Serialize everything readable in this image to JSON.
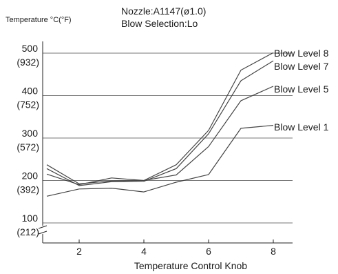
{
  "chart_data": {
    "type": "line",
    "y_axis_title": "Temperature °C(°F)",
    "header_lines": [
      "Nozzle:A1147(ø1.0)",
      "Blow Selection:Lo"
    ],
    "xlabel": "Temperature Control Knob",
    "xlim": [
      0,
      8.5
    ],
    "ylim": [
      50,
      550
    ],
    "x_ticks": [
      {
        "value": 2,
        "label": "2"
      },
      {
        "value": 4,
        "label": "4"
      },
      {
        "value": 6,
        "label": "6"
      },
      {
        "value": 8,
        "label": "8"
      }
    ],
    "y_ticks": [
      {
        "value": 100,
        "celsius": "100",
        "fahrenheit": "(212)"
      },
      {
        "value": 200,
        "celsius": "200",
        "fahrenheit": "(392)"
      },
      {
        "value": 300,
        "celsius": "300",
        "fahrenheit": "(572)"
      },
      {
        "value": 400,
        "celsius": "400",
        "fahrenheit": "(752)"
      },
      {
        "value": 500,
        "celsius": "500",
        "fahrenheit": "(932)"
      }
    ],
    "grid": "horizontal",
    "axis_break": "y-axis near 100",
    "line_color": "#444444",
    "series": [
      {
        "name": "Blow Level 8",
        "x": [
          1,
          2,
          3,
          4,
          5,
          6,
          7,
          8
        ],
        "y": [
          237,
          192,
          199,
          200,
          237,
          318,
          460,
          501
        ]
      },
      {
        "name": "Blow Level 7",
        "x": [
          1,
          2,
          3,
          4,
          5,
          6,
          7,
          8
        ],
        "y": [
          228,
          188,
          197,
          198,
          228,
          310,
          435,
          482
        ]
      },
      {
        "name": "Blow Level 5",
        "x": [
          1,
          2,
          3,
          4,
          5,
          6,
          7,
          8
        ],
        "y": [
          215,
          190,
          206,
          200,
          213,
          280,
          388,
          422
        ]
      },
      {
        "name": "Blow Level 1",
        "x": [
          1,
          2,
          3,
          4,
          5,
          6,
          7,
          8
        ],
        "y": [
          163,
          180,
          182,
          173,
          196,
          214,
          323,
          330
        ]
      }
    ]
  }
}
